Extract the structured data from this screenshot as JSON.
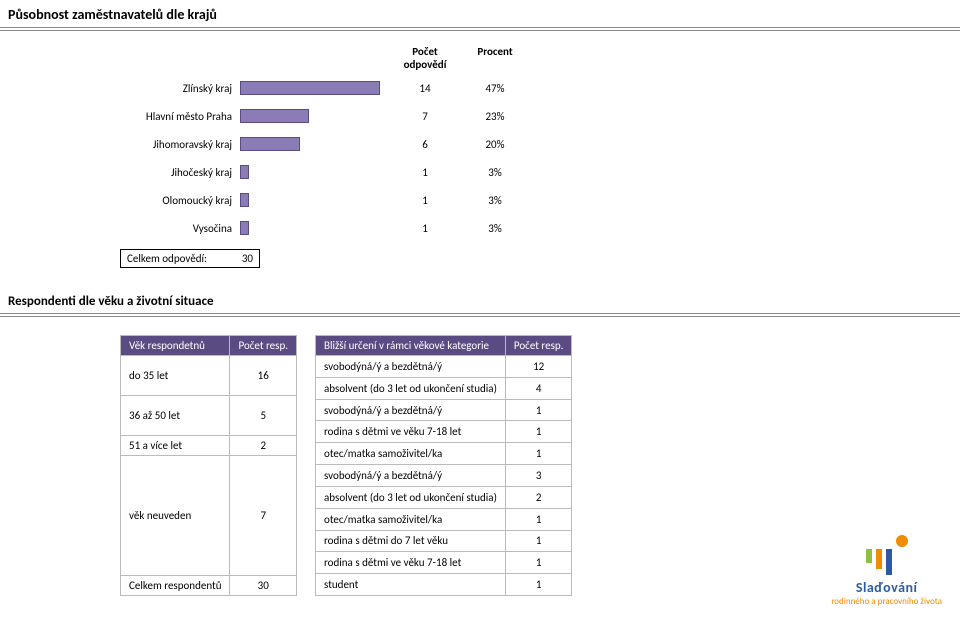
{
  "page_title": "Působnost zaměstnavatelů dle krajů",
  "chart": {
    "header_count": "Počet\nodpovědí",
    "header_pct": "Procent",
    "bar_color": "#8b7cb5",
    "bar_border": "#5b4b83",
    "rows": [
      {
        "label": "Zlínský kraj",
        "count": 14,
        "pct": "47%",
        "pct_num": 47
      },
      {
        "label": "Hlavní město Praha",
        "count": 7,
        "pct": "23%",
        "pct_num": 23
      },
      {
        "label": "Jihomoravský kraj",
        "count": 6,
        "pct": "20%",
        "pct_num": 20
      },
      {
        "label": "Jihočeský kraj",
        "count": 1,
        "pct": "3%",
        "pct_num": 3
      },
      {
        "label": "Olomoucký kraj",
        "count": 1,
        "pct": "3%",
        "pct_num": 3
      },
      {
        "label": "Vysočina",
        "count": 1,
        "pct": "3%",
        "pct_num": 3
      }
    ],
    "summary_label": "Celkem odpovědí:",
    "summary_value": 30
  },
  "section2_title": "Respondenti dle věku a životní situace",
  "left_table": {
    "header_bg": "#5b4b83",
    "h1": "Věk respondetnů",
    "h2": "Počet resp.",
    "rows": [
      {
        "label": "do 35 let",
        "value": 16,
        "rowspan": 2
      },
      {
        "label": "36 až 50 let",
        "value": 5,
        "rowspan": 2
      },
      {
        "label": "51 a více let",
        "value": 2,
        "rowspan": 1
      },
      {
        "label": "věk neuveden",
        "value": 7,
        "rowspan": 6
      }
    ],
    "total_label": "Celkem respondentů",
    "total_value": 30
  },
  "right_table": {
    "header_bg": "#5b4b83",
    "h1": "Bližší určení v rámci věkové kategorie",
    "h2": "Počet resp.",
    "rows": [
      {
        "label": "svobodýná/ý a bezdětná/ý",
        "value": 12
      },
      {
        "label": "absolvent (do 3 let od ukončení studia)",
        "value": 4
      },
      {
        "label": "svobodýná/ý a bezdětná/ý",
        "value": 1
      },
      {
        "label": "rodina s dětmi ve věku 7-18 let",
        "value": 1
      },
      {
        "label": "otec/matka samoživitel/ka",
        "value": 1
      },
      {
        "label": "svobodýná/ý a bezdětná/ý",
        "value": 3
      },
      {
        "label": "absolvent (do 3 let od ukončení studia)",
        "value": 2
      },
      {
        "label": "otec/matka samoživitel/ka",
        "value": 1
      },
      {
        "label": "rodina s dětmi do 7 let věku",
        "value": 1
      },
      {
        "label": "rodina s dětmi ve věku 7-18 let",
        "value": 1
      },
      {
        "label": "student",
        "value": 1
      }
    ]
  },
  "logo": {
    "title": "Slaďování",
    "subtitle": "rodinného a pracovního života",
    "title_color": "#2d5aa0",
    "subtitle_color": "#f08c00",
    "bar_colors": [
      "#8fc13e",
      "#f08c00",
      "#2d5aa0"
    ]
  }
}
